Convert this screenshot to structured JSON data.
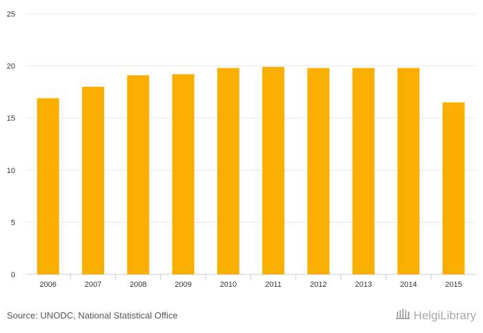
{
  "chart_data": {
    "type": "bar",
    "categories": [
      "2006",
      "2007",
      "2008",
      "2009",
      "2010",
      "2011",
      "2012",
      "2013",
      "2014",
      "2015"
    ],
    "values": [
      16.9,
      18.0,
      19.1,
      19.2,
      19.8,
      19.9,
      19.8,
      19.8,
      19.8,
      16.5
    ],
    "title": "",
    "xlabel": "",
    "ylabel": "",
    "ylim": [
      0,
      25
    ],
    "yticks": [
      0,
      5,
      10,
      15,
      20,
      25
    ],
    "grid": true,
    "bar_color": "#f9ae00"
  },
  "footer": {
    "source": "Source: UNODC, National Statistical Office",
    "brand": "HelgiLibrary",
    "brand_icon": "library-building-icon"
  }
}
